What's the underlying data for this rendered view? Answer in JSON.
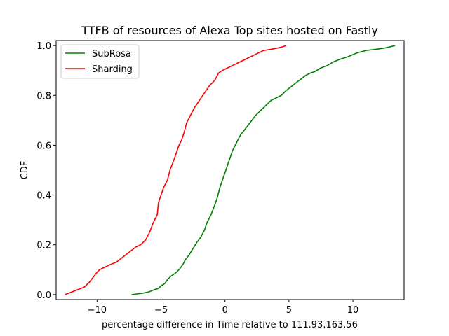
{
  "chart_data": {
    "type": "line",
    "title": "TTFB of resources of Alexa Top sites hosted on Fastly",
    "xlabel": "percentage difference in Time relative to 111.93.163.56",
    "ylabel": "CDF",
    "xlim": [
      -13.2,
      14.0
    ],
    "ylim": [
      -0.02,
      1.02
    ],
    "xticks": [
      -10,
      -5,
      0,
      5,
      10
    ],
    "xtick_labels": [
      "−10",
      "−5",
      "0",
      "5",
      "10"
    ],
    "yticks": [
      0.0,
      0.2,
      0.4,
      0.6,
      0.8,
      1.0
    ],
    "ytick_labels": [
      "0.0",
      "0.2",
      "0.4",
      "0.6",
      "0.8",
      "1.0"
    ],
    "grid": false,
    "legend_position": "top-left",
    "series": [
      {
        "name": "SubRosa",
        "color": "#008000",
        "x": [
          -7.3,
          -6.5,
          -6.0,
          -5.5,
          -5.2,
          -5.0,
          -4.7,
          -4.5,
          -4.2,
          -3.9,
          -3.6,
          -3.3,
          -3.1,
          -2.8,
          -2.5,
          -2.2,
          -1.9,
          -1.6,
          -1.4,
          -1.1,
          -0.8,
          -0.6,
          -0.4,
          -0.2,
          0.0,
          0.2,
          0.4,
          0.6,
          0.9,
          1.2,
          1.5,
          1.8,
          2.1,
          2.4,
          2.8,
          3.2,
          3.6,
          4.0,
          4.4,
          4.8,
          5.3,
          5.8,
          6.3,
          6.7,
          7.0,
          7.5,
          8.0,
          8.5,
          9.0,
          9.6,
          10.3,
          11.0,
          11.8,
          12.5,
          13.3
        ],
        "y": [
          0.0,
          0.005,
          0.01,
          0.02,
          0.025,
          0.035,
          0.045,
          0.06,
          0.075,
          0.085,
          0.1,
          0.12,
          0.14,
          0.16,
          0.185,
          0.21,
          0.23,
          0.26,
          0.29,
          0.32,
          0.36,
          0.39,
          0.43,
          0.46,
          0.49,
          0.52,
          0.55,
          0.58,
          0.61,
          0.64,
          0.66,
          0.68,
          0.7,
          0.72,
          0.74,
          0.76,
          0.78,
          0.79,
          0.8,
          0.82,
          0.84,
          0.86,
          0.88,
          0.89,
          0.895,
          0.91,
          0.92,
          0.935,
          0.945,
          0.955,
          0.97,
          0.98,
          0.985,
          0.99,
          1.0
        ]
      },
      {
        "name": "Sharding",
        "color": "#ff0000",
        "x": [
          -12.5,
          -12.0,
          -11.5,
          -11.0,
          -10.6,
          -10.3,
          -10.0,
          -9.8,
          -9.4,
          -9.0,
          -8.5,
          -8.0,
          -7.5,
          -7.0,
          -6.6,
          -6.2,
          -5.9,
          -5.6,
          -5.3,
          -5.2,
          -5.0,
          -4.8,
          -4.5,
          -4.3,
          -4.0,
          -3.8,
          -3.6,
          -3.4,
          -3.2,
          -3.0,
          -2.7,
          -2.4,
          -2.0,
          -1.6,
          -1.2,
          -0.8,
          -0.5,
          -0.2,
          0.2,
          0.6,
          1.2,
          1.8,
          2.4,
          3.0,
          3.6,
          4.1,
          4.5,
          4.8
        ],
        "y": [
          0.0,
          0.01,
          0.02,
          0.03,
          0.05,
          0.07,
          0.09,
          0.1,
          0.11,
          0.12,
          0.13,
          0.15,
          0.17,
          0.19,
          0.2,
          0.22,
          0.25,
          0.29,
          0.32,
          0.37,
          0.4,
          0.43,
          0.46,
          0.5,
          0.54,
          0.57,
          0.6,
          0.62,
          0.65,
          0.69,
          0.72,
          0.75,
          0.78,
          0.81,
          0.84,
          0.86,
          0.89,
          0.9,
          0.91,
          0.92,
          0.935,
          0.95,
          0.965,
          0.98,
          0.985,
          0.99,
          0.995,
          1.0
        ]
      }
    ]
  }
}
